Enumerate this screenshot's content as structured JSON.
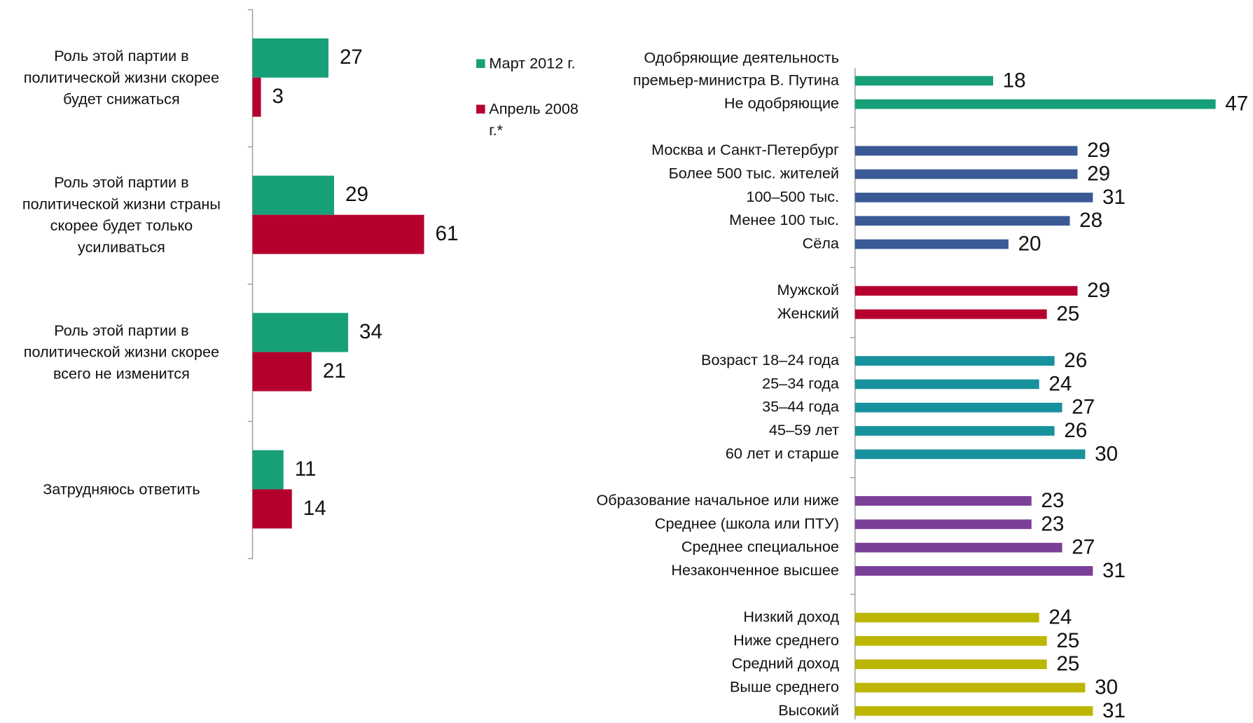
{
  "chart_data": [
    {
      "type": "grouped-hbar",
      "categories": [
        "Роль этой партии в\nполитической жизни скорее\nбудет снижаться",
        "Роль этой партии в\nполитической жизни страны\nскорее будет только\nусиливаться",
        "Роль этой партии в\nполитической жизни скорее\nвсего не изменится",
        "Затрудняюсь ответить"
      ],
      "series": [
        {
          "name": "Март 2012 г.",
          "color": "#17a078",
          "values": [
            27,
            29,
            34,
            11
          ]
        },
        {
          "name": "Апрель 2008\nг.*",
          "color": "#b5002e",
          "values": [
            3,
            61,
            21,
            14
          ]
        }
      ],
      "xlim": [
        0,
        70
      ]
    },
    {
      "type": "hbar",
      "categories": [
        "Одобряющие деятельность\nпремьер-министра В. Путина",
        "Не одобряющие",
        null,
        "Москва и Санкт-Петербург",
        "Более 500 тыс. жителей",
        "100–500 тыс.",
        "Менее 100 тыс.",
        "Сёла",
        null,
        "Мужской",
        "Женский",
        null,
        "Возраст 18–24 года",
        "25–34 года",
        "35–44 года",
        "45–59 лет",
        "60 лет и старше",
        null,
        "Образование начальное  или ниже",
        "Среднее (школа или ПТУ)",
        "Среднее специальное",
        "Незаконченное высшее",
        null,
        "Низкий доход",
        "Ниже среднего",
        "Средний доход",
        "Выше среднего",
        "Высокий"
      ],
      "values": [
        18,
        47,
        null,
        29,
        29,
        31,
        28,
        20,
        null,
        29,
        25,
        null,
        26,
        24,
        27,
        26,
        30,
        null,
        23,
        23,
        27,
        31,
        null,
        24,
        25,
        25,
        30,
        31
      ],
      "colors": [
        "#17a078",
        "#17a078",
        null,
        "#3a5a96",
        "#3a5a96",
        "#3a5a96",
        "#3a5a96",
        "#3a5a96",
        null,
        "#b5002e",
        "#b5002e",
        null,
        "#17919c",
        "#17919c",
        "#17919c",
        "#17919c",
        "#17919c",
        null,
        "#7b3f98",
        "#7b3f98",
        "#7b3f98",
        "#7b3f98",
        null,
        "#bdb600",
        "#bdb600",
        "#bdb600",
        "#bdb600",
        "#bdb600"
      ],
      "xlim": [
        0,
        50
      ]
    }
  ]
}
